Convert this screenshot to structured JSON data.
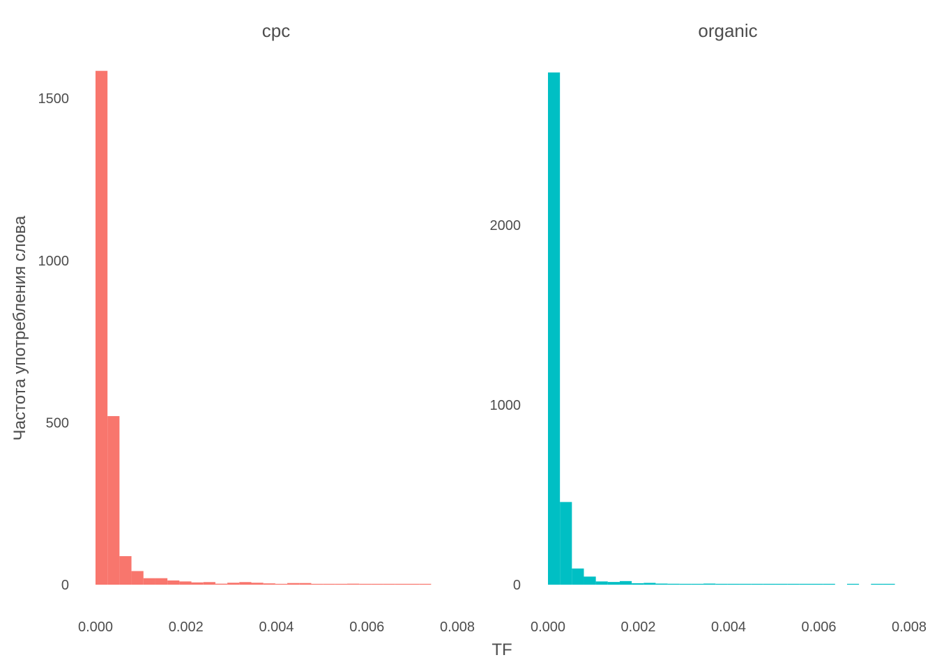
{
  "colors": {
    "cpc": "#F8766D",
    "organic": "#00BFC4",
    "text": "#4d4d4d"
  },
  "chart_data": {
    "type": "bar",
    "xlabel": "TF",
    "ylabel": "Частота употребления слова",
    "bin_width": 0.000265,
    "panels": [
      {
        "title": "cpc",
        "color": "#F8766D",
        "xlim": [
          0,
          0.008
        ],
        "ylim": [
          0,
          1580
        ],
        "x_ticks": [
          0,
          0.002,
          0.004,
          0.006,
          0.008
        ],
        "x_tick_labels": [
          "0.000",
          "0.002",
          "0.004",
          "0.006",
          "0.008"
        ],
        "y_ticks": [
          0,
          500,
          1000,
          1500
        ],
        "y_tick_labels": [
          "0",
          "500",
          "1000",
          "1500"
        ],
        "bins": [
          {
            "x": 0.0,
            "count": 1585
          },
          {
            "x": 0.000265,
            "count": 520
          },
          {
            "x": 0.00053,
            "count": 88
          },
          {
            "x": 0.000795,
            "count": 42
          },
          {
            "x": 0.00106,
            "count": 20
          },
          {
            "x": 0.001325,
            "count": 20
          },
          {
            "x": 0.00159,
            "count": 13
          },
          {
            "x": 0.001855,
            "count": 10
          },
          {
            "x": 0.00212,
            "count": 7
          },
          {
            "x": 0.002385,
            "count": 8
          },
          {
            "x": 0.00265,
            "count": 3
          },
          {
            "x": 0.002915,
            "count": 6
          },
          {
            "x": 0.00318,
            "count": 8
          },
          {
            "x": 0.003445,
            "count": 6
          },
          {
            "x": 0.00371,
            "count": 4
          },
          {
            "x": 0.003975,
            "count": 2
          },
          {
            "x": 0.00424,
            "count": 5
          },
          {
            "x": 0.004505,
            "count": 5
          },
          {
            "x": 0.00477,
            "count": 2
          },
          {
            "x": 0.005035,
            "count": 2
          },
          {
            "x": 0.0053,
            "count": 2
          },
          {
            "x": 0.005565,
            "count": 3
          },
          {
            "x": 0.00583,
            "count": 2
          },
          {
            "x": 0.006095,
            "count": 1
          },
          {
            "x": 0.00636,
            "count": 1
          },
          {
            "x": 0.006625,
            "count": 1
          },
          {
            "x": 0.00689,
            "count": 1
          },
          {
            "x": 0.007155,
            "count": 1
          }
        ]
      },
      {
        "title": "organic",
        "color": "#00BFC4",
        "xlim": [
          0,
          0.008
        ],
        "ylim": [
          0,
          2850
        ],
        "x_ticks": [
          0,
          0.002,
          0.004,
          0.006,
          0.008
        ],
        "x_tick_labels": [
          "0.000",
          "0.002",
          "0.004",
          "0.006",
          "0.008"
        ],
        "y_ticks": [
          0,
          1000,
          2000
        ],
        "y_tick_labels": [
          "0",
          "1000",
          "2000"
        ],
        "bins": [
          {
            "x": 0.0,
            "count": 2850
          },
          {
            "x": 0.000265,
            "count": 460
          },
          {
            "x": 0.00053,
            "count": 90
          },
          {
            "x": 0.000795,
            "count": 45
          },
          {
            "x": 0.00106,
            "count": 18
          },
          {
            "x": 0.001325,
            "count": 15
          },
          {
            "x": 0.00159,
            "count": 20
          },
          {
            "x": 0.001855,
            "count": 8
          },
          {
            "x": 0.00212,
            "count": 10
          },
          {
            "x": 0.002385,
            "count": 6
          },
          {
            "x": 0.00265,
            "count": 5
          },
          {
            "x": 0.002915,
            "count": 3
          },
          {
            "x": 0.00318,
            "count": 3
          },
          {
            "x": 0.003445,
            "count": 6
          },
          {
            "x": 0.00371,
            "count": 2
          },
          {
            "x": 0.003975,
            "count": 2
          },
          {
            "x": 0.00424,
            "count": 2
          },
          {
            "x": 0.004505,
            "count": 2
          },
          {
            "x": 0.00477,
            "count": 2
          },
          {
            "x": 0.005035,
            "count": 2
          },
          {
            "x": 0.0053,
            "count": 2
          },
          {
            "x": 0.005565,
            "count": 2
          },
          {
            "x": 0.00583,
            "count": 2
          },
          {
            "x": 0.006095,
            "count": 2
          },
          {
            "x": 0.00636,
            "count": 0
          },
          {
            "x": 0.006625,
            "count": 2
          },
          {
            "x": 0.00689,
            "count": 0
          },
          {
            "x": 0.007155,
            "count": 2
          },
          {
            "x": 0.00742,
            "count": 2
          }
        ]
      }
    ]
  }
}
